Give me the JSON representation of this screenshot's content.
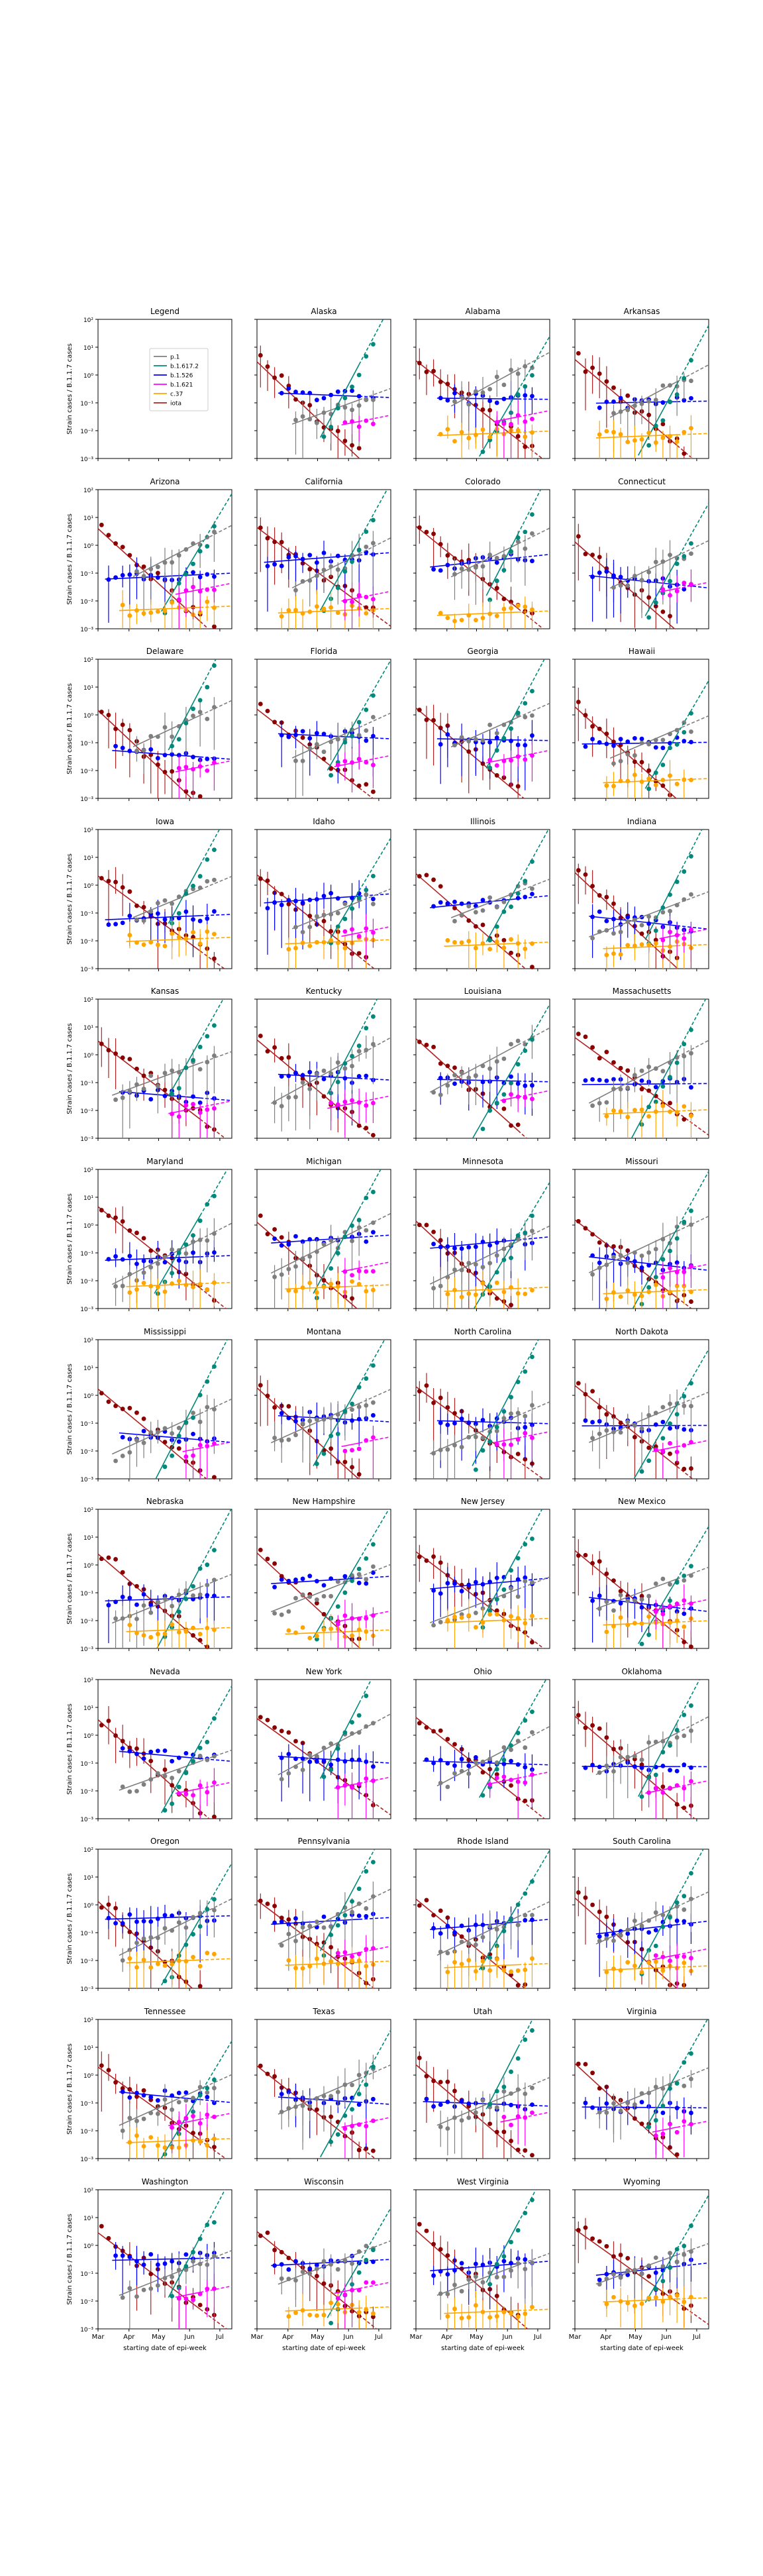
{
  "figure": {
    "ylabel": "Strain cases / B.1.1.7 cases",
    "xlabel": "starting date of epi-week"
  },
  "legend": {
    "title": "Legend",
    "entries": [
      {
        "label": "p.1",
        "color": "#7f7f7f"
      },
      {
        "label": "b.1.617.2",
        "color": "#00897b"
      },
      {
        "label": "b.1.526",
        "color": "#0000ff"
      },
      {
        "label": "b.1.621",
        "color": "#ff00ff"
      },
      {
        "label": "c.37",
        "color": "#ffa500"
      },
      {
        "label": "iota",
        "color": "#b22222"
      }
    ]
  },
  "chart_data": {
    "type": "scatter",
    "yscale": "log",
    "ylim": [
      0.001,
      100
    ],
    "yticks": [
      "10⁻³",
      "10⁻²",
      "10⁻¹",
      "10⁰",
      "10¹",
      "10²"
    ],
    "xlim": [
      0,
      19
    ],
    "xticks": [
      {
        "x": 0,
        "label": "Mar"
      },
      {
        "x": 4.4,
        "label": "Apr"
      },
      {
        "x": 8.6,
        "label": "May"
      },
      {
        "x": 13,
        "label": "Jun"
      },
      {
        "x": 17.3,
        "label": "Jul"
      }
    ],
    "series_names": [
      "p.1",
      "b.1.617.2",
      "b.1.526",
      "b.1.621",
      "c.37",
      "iota"
    ],
    "panels": [
      {
        "title": "Alaska"
      },
      {
        "title": "Alabama"
      },
      {
        "title": "Arkansas"
      },
      {
        "title": "Arizona"
      },
      {
        "title": "California"
      },
      {
        "title": "Colorado"
      },
      {
        "title": "Connecticut"
      },
      {
        "title": "Delaware"
      },
      {
        "title": "Florida"
      },
      {
        "title": "Georgia"
      },
      {
        "title": "Hawaii"
      },
      {
        "title": "Iowa"
      },
      {
        "title": "Idaho"
      },
      {
        "title": "Illinois"
      },
      {
        "title": "Indiana"
      },
      {
        "title": "Kansas"
      },
      {
        "title": "Kentucky"
      },
      {
        "title": "Louisiana"
      },
      {
        "title": "Massachusetts"
      },
      {
        "title": "Maryland"
      },
      {
        "title": "Michigan"
      },
      {
        "title": "Minnesota"
      },
      {
        "title": "Missouri"
      },
      {
        "title": "Mississippi"
      },
      {
        "title": "Montana"
      },
      {
        "title": "North Carolina"
      },
      {
        "title": "North Dakota"
      },
      {
        "title": "Nebraska"
      },
      {
        "title": "New Hampshire"
      },
      {
        "title": "New Jersey"
      },
      {
        "title": "New Mexico"
      },
      {
        "title": "Nevada"
      },
      {
        "title": "New York"
      },
      {
        "title": "Ohio"
      },
      {
        "title": "Oklahoma"
      },
      {
        "title": "Oregon"
      },
      {
        "title": "Pennsylvania"
      },
      {
        "title": "Rhode Island"
      },
      {
        "title": "South Carolina"
      },
      {
        "title": "Tennessee"
      },
      {
        "title": "Texas"
      },
      {
        "title": "Utah"
      },
      {
        "title": "Virginia"
      },
      {
        "title": "Washington"
      },
      {
        "title": "Wisconsin"
      },
      {
        "title": "West Virginia"
      },
      {
        "title": "Wyoming"
      }
    ]
  }
}
